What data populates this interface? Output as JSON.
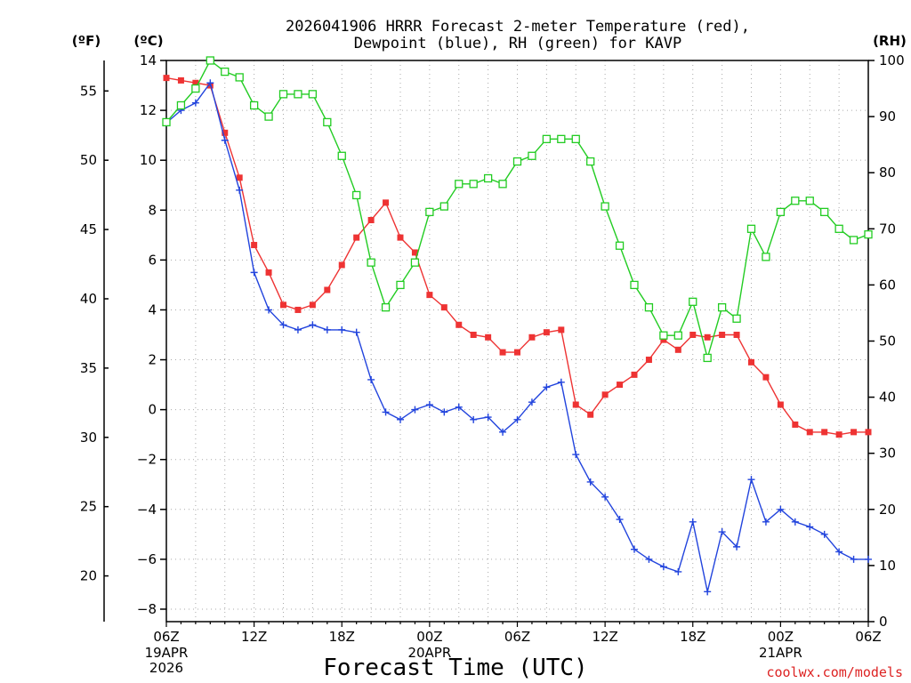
{
  "chart_data": {
    "type": "line",
    "title_lines": [
      "2026041906 HRRR Forecast 2-meter Temperature (red),",
      "Dewpoint (blue), RH (green) for KAVP"
    ],
    "xlabel": "Forecast Time (UTC)",
    "credit": "coolwx.com/models",
    "units": {
      "fahrenheit": "(ºF)",
      "celsius": "(ºC)",
      "rh": "(RH)"
    },
    "x_range_hours": [
      0,
      48
    ],
    "ylim_celsius": [
      -8.5,
      14
    ],
    "ylim_rh": [
      0,
      100
    ],
    "celsius_ticks": [
      -8,
      -6,
      -4,
      -2,
      0,
      2,
      4,
      6,
      8,
      10,
      12,
      14
    ],
    "celsius_tick_labels": [
      "−8",
      "−6",
      "−4",
      "−2",
      "0",
      "2",
      "4",
      "6",
      "8",
      "10",
      "12",
      "14"
    ],
    "fahrenheit_ticks": [
      20,
      25,
      30,
      35,
      40,
      45,
      50,
      55
    ],
    "fahrenheit_tick_labels": [
      "20",
      "25",
      "30",
      "35",
      "40",
      "45",
      "50",
      "55"
    ],
    "rh_ticks": [
      0,
      10,
      20,
      30,
      40,
      50,
      60,
      70,
      80,
      90,
      100
    ],
    "rh_tick_labels": [
      "0",
      "10",
      "20",
      "30",
      "40",
      "50",
      "60",
      "70",
      "80",
      "90",
      "100"
    ],
    "x_ticks": [
      {
        "hour": 0,
        "label": "06Z",
        "sub": [
          "19APR",
          "2026"
        ]
      },
      {
        "hour": 6,
        "label": "12Z",
        "sub": []
      },
      {
        "hour": 12,
        "label": "18Z",
        "sub": []
      },
      {
        "hour": 18,
        "label": "00Z",
        "sub": [
          "20APR"
        ]
      },
      {
        "hour": 24,
        "label": "06Z",
        "sub": []
      },
      {
        "hour": 30,
        "label": "12Z",
        "sub": []
      },
      {
        "hour": 36,
        "label": "18Z",
        "sub": []
      },
      {
        "hour": 42,
        "label": "00Z",
        "sub": [
          "21APR"
        ]
      },
      {
        "hour": 48,
        "label": "06Z",
        "sub": []
      }
    ],
    "series": [
      {
        "name": "Temperature",
        "unit": "C",
        "color": "#ee3333",
        "marker": "filled-square",
        "values": [
          13.3,
          13.2,
          13.1,
          13.0,
          11.1,
          9.3,
          6.6,
          5.5,
          4.2,
          4.0,
          4.2,
          4.8,
          5.8,
          6.9,
          7.6,
          8.3,
          6.9,
          6.3,
          4.6,
          4.1,
          3.4,
          3.0,
          2.9,
          2.3,
          2.3,
          2.9,
          3.1,
          3.2,
          0.2,
          -0.2,
          0.6,
          1.0,
          1.4,
          2.0,
          2.8,
          2.4,
          3.0,
          2.9,
          3.0,
          3.0,
          1.9,
          1.3,
          0.2,
          -0.6,
          -0.9,
          -0.9,
          -1.0,
          -0.9,
          -0.9
        ]
      },
      {
        "name": "Dewpoint",
        "unit": "C",
        "color": "#2244dd",
        "marker": "plus",
        "values": [
          11.5,
          12.0,
          12.3,
          13.1,
          10.8,
          8.8,
          5.5,
          4.0,
          3.4,
          3.2,
          3.4,
          3.2,
          3.2,
          3.1,
          1.2,
          -0.1,
          -0.4,
          0.0,
          0.2,
          -0.1,
          0.1,
          -0.4,
          -0.3,
          -0.9,
          -0.4,
          0.3,
          0.9,
          1.1,
          -1.8,
          -2.9,
          -3.5,
          -4.4,
          -5.6,
          -6.0,
          -6.3,
          -6.5,
          -4.5,
          -7.3,
          -4.9,
          -5.5,
          -2.8,
          -4.5,
          -4.0,
          -4.5,
          -4.7,
          -5.0,
          -5.7,
          -6.0,
          -6.0
        ]
      },
      {
        "name": "RH",
        "unit": "%",
        "color": "#22cc22",
        "marker": "open-square",
        "values": [
          89,
          92,
          95,
          100,
          98,
          97,
          92,
          90,
          94,
          94,
          94,
          89,
          83,
          76,
          64,
          56,
          60,
          64,
          73,
          74,
          78,
          78,
          79,
          78,
          82,
          83,
          86,
          86,
          86,
          82,
          74,
          67,
          60,
          56,
          51,
          51,
          57,
          47,
          56,
          54,
          70,
          65,
          73,
          75,
          75,
          73,
          70,
          68,
          69
        ]
      }
    ]
  }
}
